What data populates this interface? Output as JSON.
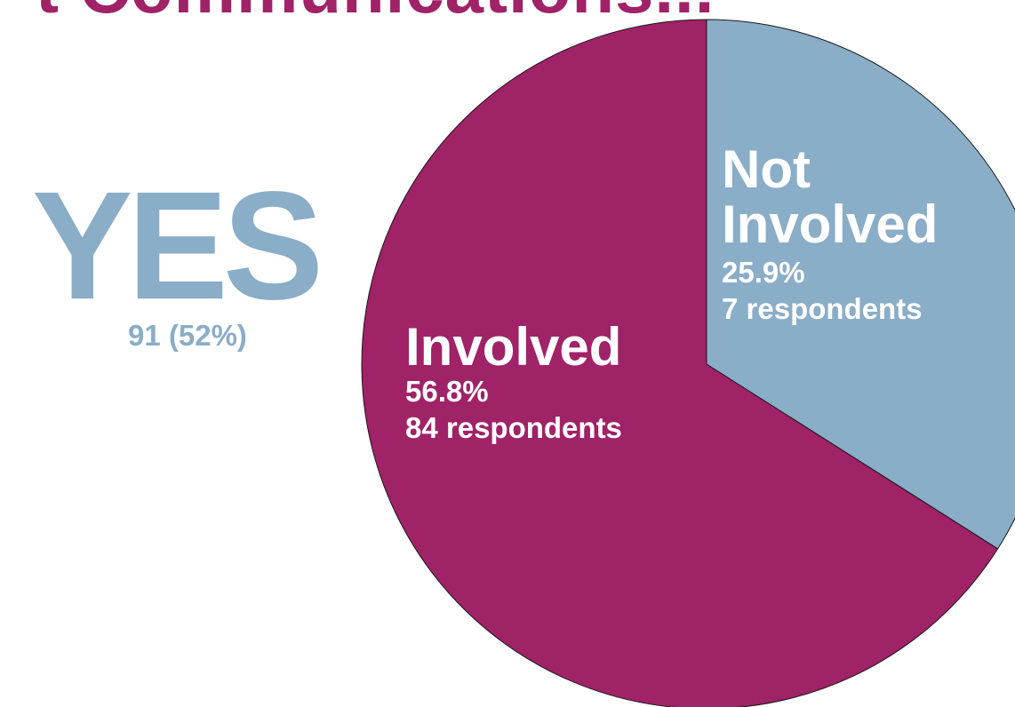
{
  "colors": {
    "accent_magenta": "#A02267",
    "accent_blue": "#8AADC8",
    "background": "#FFFFFF",
    "slice_label_text": "#FFFFFF"
  },
  "header": {
    "title_fragment": "t Communications..."
  },
  "summary": {
    "answer": "YES",
    "count_text": "91 (52%)"
  },
  "chart_data": {
    "type": "pie",
    "title": "",
    "categories": [
      "Involved",
      "Not Involved"
    ],
    "values": [
      84,
      7
    ],
    "slices": [
      {
        "label": "Involved",
        "percent_text": "56.8%",
        "respondents_text": "84 respondents",
        "color": "#A02267"
      },
      {
        "label": "Not Involved",
        "percent_text": "25.9%",
        "respondents_text": "7 respondents",
        "color": "#8AADC8"
      }
    ],
    "legend": "none"
  }
}
